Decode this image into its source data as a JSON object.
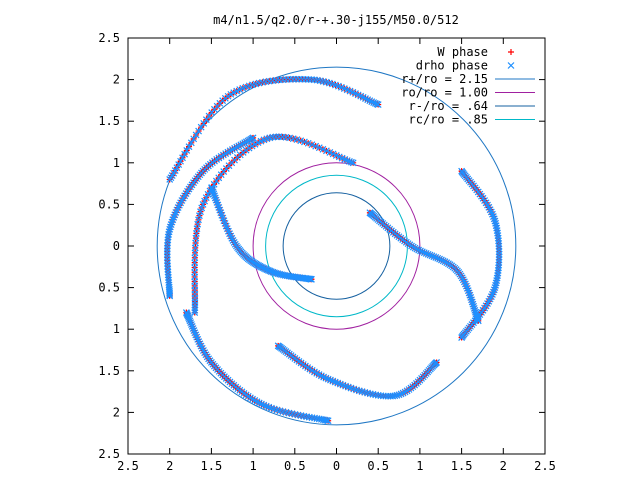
{
  "chart_data": {
    "type": "scatter",
    "title": "m4/n1.5/q2.0/r-+.30-j155/M50.0/512",
    "xlim": [
      -2.5,
      2.5
    ],
    "ylim": [
      -2.5,
      2.5
    ],
    "x_ticks": [
      -2.5,
      -2,
      -1.5,
      -1,
      -0.5,
      0,
      0.5,
      1,
      1.5,
      2,
      2.5
    ],
    "y_ticks": [
      -2.5,
      -2,
      -1.5,
      -1,
      -0.5,
      0,
      0.5,
      1,
      1.5,
      2,
      2.5
    ],
    "x_tick_labels": [
      "2.5",
      "2",
      "1.5",
      "1",
      "0.5",
      "0",
      "0.5",
      "1",
      "1.5",
      "2",
      "2.5"
    ],
    "y_tick_labels": [
      "2.5",
      "2",
      "1.5",
      "1",
      "0.5",
      "0",
      "0.5",
      "1",
      "1.5",
      "2",
      "2.5"
    ],
    "legend_position": "top-right",
    "scatter_series": [
      {
        "name": "W phase",
        "marker": "plus",
        "color": "#ff0000",
        "arms": [
          [
            [
              0.2,
              1.0
            ],
            [
              -0.8,
              1.3
            ],
            [
              -1.6,
              0.5
            ],
            [
              -1.7,
              -0.8
            ]
          ],
          [
            [
              0.4,
              0.4
            ],
            [
              0.9,
              0.0
            ],
            [
              1.45,
              -0.3
            ],
            [
              1.7,
              -0.9
            ]
          ],
          [
            [
              -0.3,
              -0.4
            ],
            [
              -0.8,
              -0.3
            ],
            [
              -1.2,
              0.0
            ],
            [
              -1.5,
              0.7
            ]
          ],
          [
            [
              0.5,
              1.7
            ],
            [
              -0.3,
              2.0
            ],
            [
              -1.3,
              1.8
            ],
            [
              -2.0,
              0.8
            ]
          ],
          [
            [
              -0.7,
              -1.2
            ],
            [
              -0.1,
              -1.6
            ],
            [
              0.7,
              -1.8
            ],
            [
              1.2,
              -1.4
            ]
          ],
          [
            [
              -1.0,
              1.3
            ],
            [
              -1.6,
              0.9
            ],
            [
              -2.0,
              0.2
            ],
            [
              -2.0,
              -0.6
            ]
          ],
          [
            [
              1.5,
              0.9
            ],
            [
              1.9,
              0.3
            ],
            [
              1.9,
              -0.5
            ],
            [
              1.5,
              -1.1
            ]
          ],
          [
            [
              -1.8,
              -0.8
            ],
            [
              -1.5,
              -1.4
            ],
            [
              -0.9,
              -1.9
            ],
            [
              -0.1,
              -2.1
            ]
          ]
        ]
      },
      {
        "name": "drho phase",
        "marker": "cross",
        "color": "#1e90ff",
        "arms": [
          [
            [
              0.2,
              1.0
            ],
            [
              -0.8,
              1.3
            ],
            [
              -1.6,
              0.5
            ],
            [
              -1.7,
              -0.8
            ]
          ],
          [
            [
              0.4,
              0.4
            ],
            [
              0.9,
              0.0
            ],
            [
              1.45,
              -0.3
            ],
            [
              1.7,
              -0.9
            ]
          ],
          [
            [
              -0.3,
              -0.4
            ],
            [
              -0.8,
              -0.3
            ],
            [
              -1.2,
              0.0
            ],
            [
              -1.5,
              0.7
            ]
          ],
          [
            [
              0.5,
              1.7
            ],
            [
              -0.3,
              2.0
            ],
            [
              -1.3,
              1.8
            ],
            [
              -2.0,
              0.8
            ]
          ],
          [
            [
              -0.7,
              -1.2
            ],
            [
              -0.1,
              -1.6
            ],
            [
              0.7,
              -1.8
            ],
            [
              1.2,
              -1.4
            ]
          ],
          [
            [
              -1.0,
              1.3
            ],
            [
              -1.6,
              0.9
            ],
            [
              -2.0,
              0.2
            ],
            [
              -2.0,
              -0.6
            ]
          ],
          [
            [
              1.5,
              0.9
            ],
            [
              1.9,
              0.3
            ],
            [
              1.9,
              -0.5
            ],
            [
              1.5,
              -1.1
            ]
          ],
          [
            [
              -1.8,
              -0.8
            ],
            [
              -1.5,
              -1.4
            ],
            [
              -0.9,
              -1.9
            ],
            [
              -0.1,
              -2.1
            ]
          ]
        ]
      }
    ],
    "circles": [
      {
        "name": "r+/ro = 2.15",
        "radius": 2.15,
        "color": "#1f77c4"
      },
      {
        "name": "ro/ro = 1.00",
        "radius": 1.0,
        "color": "#a020a0"
      },
      {
        "name": "r-/ro = .64",
        "radius": 0.64,
        "color": "#1560a0"
      },
      {
        "name": "rc/ro = .85",
        "radius": 0.85,
        "color": "#00b8c8"
      }
    ]
  }
}
